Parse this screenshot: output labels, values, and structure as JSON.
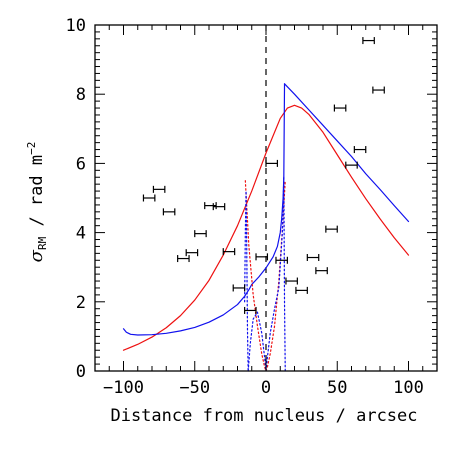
{
  "chart_data": {
    "type": "scatter",
    "title": "",
    "xlabel": "Distance from nucleus / arcsec",
    "ylabel": {
      "sigma": "σ",
      "subscript": "RM",
      "units": " / rad m",
      "exponent": "−2"
    },
    "xlim": [
      -120,
      120
    ],
    "ylim": [
      0,
      10
    ],
    "x_ticks": [
      -100,
      -50,
      0,
      50,
      100
    ],
    "x_tick_labels": [
      "−100",
      "−50",
      "0",
      "50",
      "100"
    ],
    "y_ticks": [
      0,
      2,
      4,
      6,
      8,
      10
    ],
    "y_tick_labels": [
      "0",
      "2",
      "4",
      "6",
      "8",
      "10"
    ],
    "grid": false,
    "legend": "none",
    "nucleus_line_x": 0,
    "colors": {
      "red_model": "#ee1111",
      "blue_model": "#1111ee",
      "data": "#000000"
    },
    "points": [
      {
        "x": -82,
        "y": 5.0,
        "xerr": 4
      },
      {
        "x": -75,
        "y": 5.25,
        "xerr": 4
      },
      {
        "x": -68,
        "y": 4.6,
        "xerr": 4
      },
      {
        "x": -58,
        "y": 3.25,
        "xerr": 4
      },
      {
        "x": -52,
        "y": 3.42,
        "xerr": 4
      },
      {
        "x": -46,
        "y": 3.97,
        "xerr": 4
      },
      {
        "x": -39,
        "y": 4.78,
        "xerr": 4
      },
      {
        "x": -33,
        "y": 4.75,
        "xerr": 4
      },
      {
        "x": -26,
        "y": 3.45,
        "xerr": 4
      },
      {
        "x": -19,
        "y": 2.4,
        "xerr": 4
      },
      {
        "x": -11,
        "y": 1.75,
        "xerr": 4
      },
      {
        "x": -3,
        "y": 3.3,
        "xerr": 4
      },
      {
        "x": 4,
        "y": 6.0,
        "xerr": 4
      },
      {
        "x": 11,
        "y": 3.2,
        "xerr": 4
      },
      {
        "x": 18,
        "y": 2.6,
        "xerr": 4
      },
      {
        "x": 25,
        "y": 2.33,
        "xerr": 4
      },
      {
        "x": 33,
        "y": 3.28,
        "xerr": 4
      },
      {
        "x": 39,
        "y": 2.9,
        "xerr": 4
      },
      {
        "x": 46,
        "y": 4.1,
        "xerr": 4
      },
      {
        "x": 52,
        "y": 7.6,
        "xerr": 4
      },
      {
        "x": 60,
        "y": 5.95,
        "xerr": 4
      },
      {
        "x": 66,
        "y": 6.4,
        "xerr": 4
      },
      {
        "x": 72,
        "y": 9.55,
        "xerr": 4
      },
      {
        "x": 79,
        "y": 8.12,
        "xerr": 4
      }
    ],
    "series": [
      {
        "color": "#ee1111",
        "style": "solid",
        "x": [
          -100,
          -90,
          -80,
          -70,
          -60,
          -50,
          -40,
          -30,
          -20,
          -10,
          0,
          10,
          15,
          20,
          25,
          30,
          40,
          50,
          60,
          70,
          80,
          90,
          100
        ],
        "y": [
          0.6,
          0.77,
          0.98,
          1.25,
          1.6,
          2.05,
          2.62,
          3.35,
          4.2,
          5.2,
          6.3,
          7.3,
          7.6,
          7.68,
          7.6,
          7.42,
          6.9,
          6.25,
          5.6,
          4.98,
          4.4,
          3.85,
          3.35
        ]
      },
      {
        "color": "#1111ee",
        "style": "solid",
        "x": [
          -100,
          -98,
          -95,
          -90,
          -80,
          -70,
          -60,
          -50,
          -40,
          -30,
          -20,
          -15,
          -12,
          -10
        ],
        "y": [
          1.22,
          1.12,
          1.06,
          1.04,
          1.05,
          1.09,
          1.16,
          1.26,
          1.41,
          1.62,
          1.92,
          2.16,
          2.35,
          2.5
        ]
      },
      {
        "color": "#1111ee",
        "style": "solid",
        "x": [
          -10,
          -5,
          0,
          5,
          8,
          10,
          11,
          12,
          12.5,
          13
        ],
        "y": [
          2.5,
          2.72,
          2.98,
          3.3,
          3.6,
          4.0,
          4.4,
          5.0,
          5.6,
          8.3
        ]
      },
      {
        "color": "#1111ee",
        "style": "solid",
        "x": [
          13,
          20,
          30,
          40,
          50,
          60,
          70,
          80,
          90,
          100
        ],
        "y": [
          8.3,
          8.0,
          7.55,
          7.1,
          6.65,
          6.2,
          5.7,
          5.25,
          4.78,
          4.32
        ]
      },
      {
        "color": "#ee1111",
        "style": "dotted",
        "x": [
          -14.5,
          -12,
          -9,
          -6,
          -3,
          -1,
          0,
          1,
          3,
          6,
          9,
          12,
          13.5
        ],
        "y": [
          5.5,
          3.6,
          2.2,
          1.3,
          0.5,
          0.12,
          0,
          0.12,
          0.5,
          1.3,
          2.6,
          4.4,
          5.5
        ]
      },
      {
        "color": "#1111ee",
        "style": "dotted",
        "x": [
          -15,
          -14.5,
          -14,
          -13.5,
          -13,
          -12.5
        ],
        "y": [
          2.0,
          4.0,
          5.2,
          3.5,
          1.2,
          0
        ]
      },
      {
        "color": "#1111ee",
        "style": "dotted",
        "x": [
          -12.5,
          -11,
          -9,
          -6,
          -3,
          -1,
          0,
          1,
          3,
          6,
          9,
          11.5,
          12.5
        ],
        "y": [
          0,
          0.8,
          1.5,
          1.7,
          1.1,
          0.4,
          0,
          0.4,
          1.1,
          1.8,
          2.4,
          4.0,
          5.6
        ]
      },
      {
        "color": "#1111ee",
        "style": "dotted",
        "x": [
          12.5,
          13,
          13.5
        ],
        "y": [
          5.6,
          2.0,
          0
        ]
      }
    ]
  }
}
